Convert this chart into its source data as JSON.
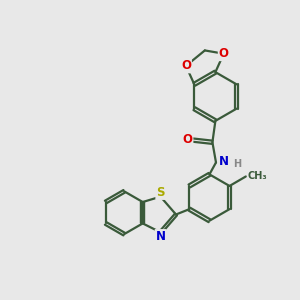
{
  "bg_color": "#e8e8e8",
  "bond_color": "#3a5a3a",
  "bond_width": 1.6,
  "atom_colors": {
    "O": "#dd0000",
    "N": "#0000cc",
    "S": "#aaaa00",
    "H": "#888888",
    "C": "#3a5a3a"
  },
  "font_size": 8.5,
  "fig_size": [
    3.0,
    3.0
  ],
  "dpi": 100
}
